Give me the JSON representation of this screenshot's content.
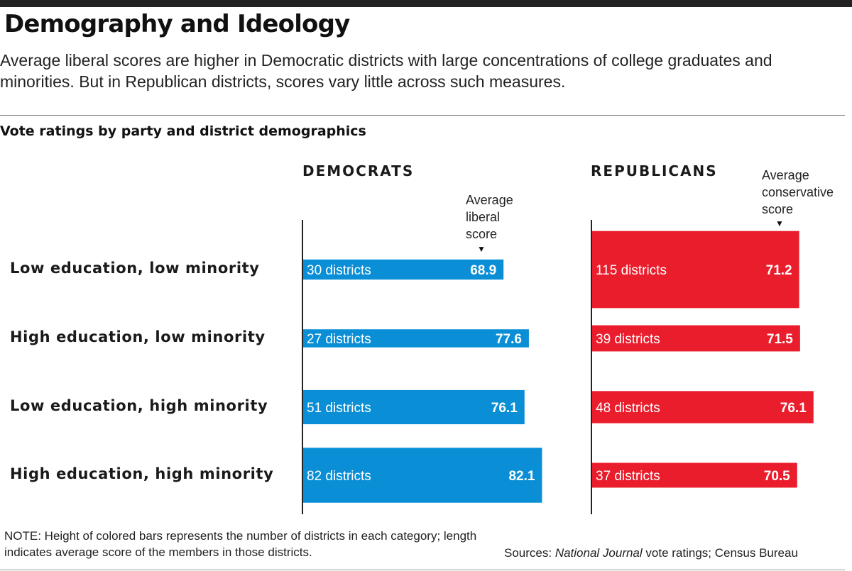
{
  "header": {
    "title": "Demography and Ideology",
    "subtitle": "Average liberal scores are higher in Democratic districts with large concentrations of college graduates and minorities. But in Republican districts, scores vary little across such measures."
  },
  "footer": {
    "note": "NOTE: Height of colored bars represents the number of districts in each category; length indicates average score of the members in those districts.",
    "sources_prefix": "Sources: ",
    "sources_italic": "National Journal",
    "sources_suffix": " vote ratings; Census Bureau"
  },
  "colors": {
    "democrats": "#0a8fd6",
    "republicans": "#ea1d2c",
    "axis": "#222222"
  },
  "chart_data": {
    "type": "bar",
    "title": "Vote ratings by party and district demographics",
    "categories": [
      "Low education, low minority",
      "High education, low minority",
      "Low education, high minority",
      "High education, high minority"
    ],
    "count_suffix": " districts",
    "panels": [
      {
        "name": "DEMOCRATS",
        "metric_label": "Average\nliberal\nscore",
        "color": "#0a8fd6",
        "values": [
          68.9,
          77.6,
          76.1,
          82.1
        ],
        "districts": [
          30,
          27,
          51,
          82
        ]
      },
      {
        "name": "REPUBLICANS",
        "metric_label": "Average\nconservative\nscore",
        "color": "#ea1d2c",
        "values": [
          71.2,
          71.5,
          76.1,
          70.5
        ],
        "districts": [
          115,
          39,
          48,
          37
        ]
      }
    ],
    "encoding": "bar length = average score; bar height = number of districts"
  }
}
